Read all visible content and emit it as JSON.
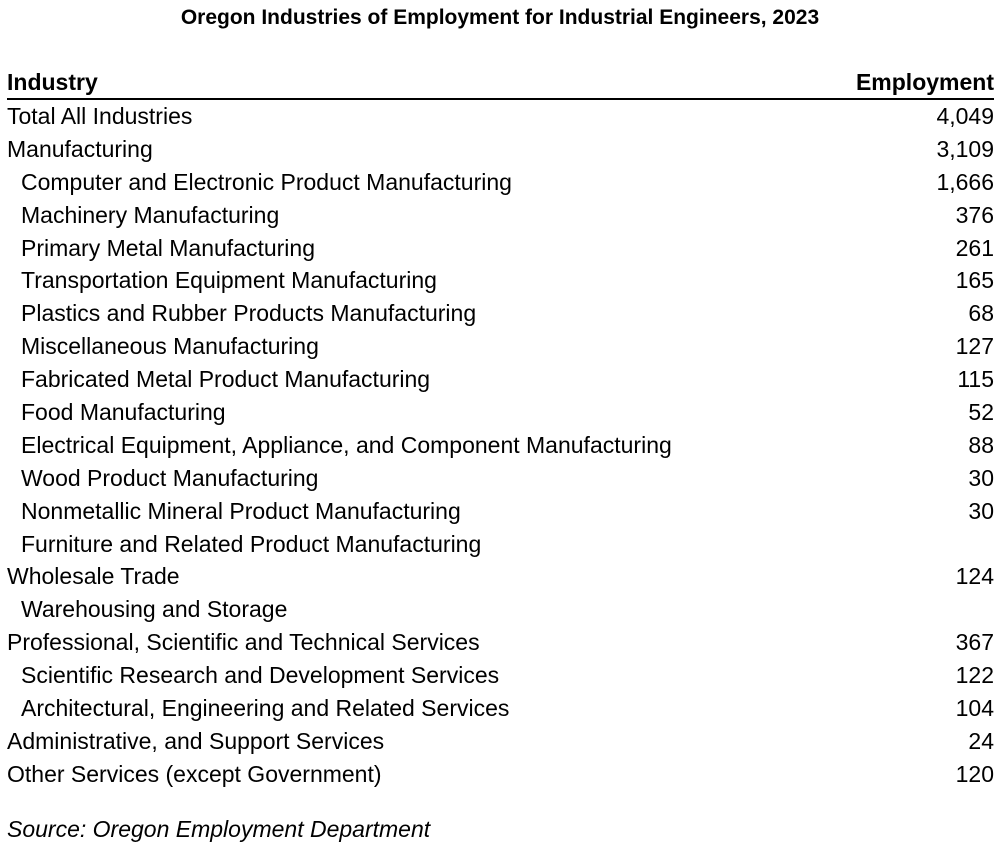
{
  "chart_data": {
    "type": "table",
    "title": "Oregon Industries of Employment for Industrial Engineers, 2023",
    "columns": [
      "Industry",
      "Employment"
    ],
    "rows": [
      {
        "industry": "Total All Industries",
        "employment": "4,049",
        "level": 0
      },
      {
        "industry": "Manufacturing",
        "employment": "3,109",
        "level": 0
      },
      {
        "industry": "Computer and Electronic Product Manufacturing",
        "employment": "1,666",
        "level": 1
      },
      {
        "industry": "Machinery Manufacturing",
        "employment": "376",
        "level": 1
      },
      {
        "industry": "Primary Metal Manufacturing",
        "employment": "261",
        "level": 1
      },
      {
        "industry": "Transportation Equipment Manufacturing",
        "employment": "165",
        "level": 1
      },
      {
        "industry": "Plastics and Rubber Products Manufacturing",
        "employment": "68",
        "level": 1
      },
      {
        "industry": "Miscellaneous Manufacturing",
        "employment": "127",
        "level": 1
      },
      {
        "industry": "Fabricated Metal Product Manufacturing",
        "employment": "115",
        "level": 1
      },
      {
        "industry": "Food Manufacturing",
        "employment": "52",
        "level": 1
      },
      {
        "industry": "Electrical Equipment, Appliance, and Component Manufacturing",
        "employment": "88",
        "level": 1
      },
      {
        "industry": "Wood Product Manufacturing",
        "employment": "30",
        "level": 1
      },
      {
        "industry": "Nonmetallic Mineral Product Manufacturing",
        "employment": "30",
        "level": 1
      },
      {
        "industry": "Furniture and Related Product Manufacturing",
        "employment": "",
        "level": 1
      },
      {
        "industry": "Wholesale Trade",
        "employment": "124",
        "level": 0
      },
      {
        "industry": "Warehousing and Storage",
        "employment": "",
        "level": 1
      },
      {
        "industry": "Professional, Scientific and Technical Services",
        "employment": "367",
        "level": 0
      },
      {
        "industry": "Scientific Research and Development Services",
        "employment": "122",
        "level": 1
      },
      {
        "industry": "Architectural, Engineering and Related Services",
        "employment": "104",
        "level": 1
      },
      {
        "industry": "Administrative, and Support Services",
        "employment": "24",
        "level": 0
      },
      {
        "industry": "Other Services (except Government)",
        "employment": "120",
        "level": 0
      }
    ],
    "source": "Source: Oregon Employment Department"
  }
}
